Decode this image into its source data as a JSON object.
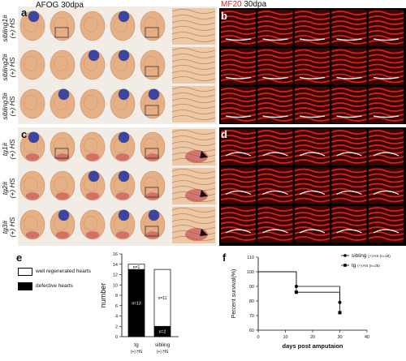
{
  "panel_a": {
    "letter": "a",
    "stain": "AFOG",
    "stage": "30dpa"
  },
  "panel_b": {
    "letter": "b",
    "stain": "MF20",
    "stage": "30dpa"
  },
  "panel_c": {
    "letter": "c"
  },
  "panel_d": {
    "letter": "d"
  },
  "panel_e": {
    "letter": "e"
  },
  "panel_f": {
    "letter": "f"
  },
  "rows_top": [
    {
      "label": "sibling1#",
      "treatment": "(+) HS"
    },
    {
      "label": "sibling2#",
      "treatment": "(+) HS"
    },
    {
      "label": "sibling3#",
      "treatment": "(+) HS"
    }
  ],
  "rows_bottom": [
    {
      "label": "tg1#",
      "treatment": "(+) HS"
    },
    {
      "label": "tg2#",
      "treatment": "(+) HS"
    },
    {
      "label": "tg3#",
      "treatment": "(+) HS"
    }
  ],
  "colors": {
    "afog_bg": "#f1ece6",
    "tissue": "#e6b087",
    "clot_blue": "#2a3aa0",
    "fibrin": "#c0404a",
    "mf20": "#d8201c"
  },
  "chart_data": [
    {
      "type": "bar",
      "stacked": true,
      "categories": [
        "tg",
        "sibling"
      ],
      "category_sublabels": [
        "(+) HS",
        "(+) HS"
      ],
      "series": [
        {
          "name": "defective hearts",
          "color": "#000000",
          "values": [
            13,
            2
          ],
          "labels": [
            "n=13",
            "n=2"
          ]
        },
        {
          "name": "well regenerated hearts",
          "color": "#ffffff",
          "values": [
            1,
            11
          ],
          "labels": [
            "n=1",
            "n=11"
          ]
        }
      ],
      "ylabel": "number",
      "ylim": [
        0,
        16
      ],
      "yticks": [
        0,
        2,
        4,
        6,
        8,
        10,
        12,
        14,
        16
      ]
    },
    {
      "type": "line",
      "step": true,
      "xlabel": "days post amputaion",
      "ylabel": "Percent survival(%)",
      "xlim": [
        0,
        40
      ],
      "ylim": [
        60,
        110
      ],
      "xticks": [
        0,
        10,
        20,
        30,
        40
      ],
      "yticks": [
        60,
        70,
        80,
        90,
        100,
        110
      ],
      "series": [
        {
          "name": "sibling",
          "treatment": "(+) HS",
          "n": "(n=18)",
          "marker": "circle",
          "x": [
            0,
            14,
            14,
            30,
            30
          ],
          "y": [
            100,
            100,
            90,
            90,
            79
          ]
        },
        {
          "name": "tg",
          "treatment": "(+) HS",
          "n": "(n=25)",
          "marker": "square",
          "x": [
            0,
            14,
            14,
            30,
            30
          ],
          "y": [
            100,
            100,
            86,
            86,
            72
          ]
        }
      ]
    }
  ]
}
